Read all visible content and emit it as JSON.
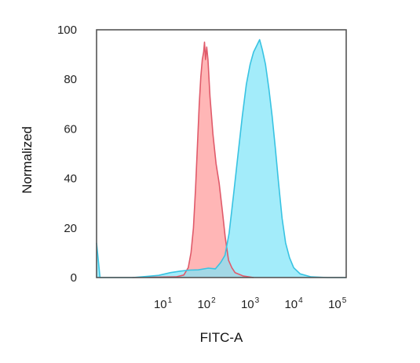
{
  "chart_data": {
    "type": "area",
    "xlabel": "FITC-A",
    "ylabel": "Normalized",
    "xscale": "log",
    "xlim": [
      0.3,
      160000
    ],
    "ylim": [
      0,
      100
    ],
    "yticks": [
      0,
      20,
      40,
      60,
      80,
      100
    ],
    "xticks": [
      {
        "value": 10,
        "base": "10",
        "exp": "1"
      },
      {
        "value": 100,
        "base": "10",
        "exp": "2"
      },
      {
        "value": 1000,
        "base": "10",
        "exp": "3"
      },
      {
        "value": 10000,
        "base": "10",
        "exp": "4"
      },
      {
        "value": 100000,
        "base": "10",
        "exp": "5"
      }
    ],
    "grid": false,
    "legend": "none",
    "series": [
      {
        "color_fill": "#ff9a9a",
        "color_line": "#e05a6a",
        "points": [
          [
            2,
            0
          ],
          [
            20,
            0.3
          ],
          [
            30,
            1
          ],
          [
            38,
            4
          ],
          [
            44,
            10
          ],
          [
            50,
            20
          ],
          [
            56,
            36
          ],
          [
            62,
            54
          ],
          [
            68,
            70
          ],
          [
            74,
            81
          ],
          [
            80,
            88
          ],
          [
            86,
            91
          ],
          [
            90,
            95
          ],
          [
            95,
            88
          ],
          [
            101,
            93
          ],
          [
            108,
            88
          ],
          [
            120,
            73
          ],
          [
            140,
            58
          ],
          [
            165,
            46
          ],
          [
            195,
            38
          ],
          [
            230,
            27
          ],
          [
            270,
            16
          ],
          [
            320,
            7
          ],
          [
            380,
            4
          ],
          [
            450,
            2
          ],
          [
            700,
            0.6
          ],
          [
            1200,
            0
          ]
        ]
      },
      {
        "color_fill": "#7fe5f8",
        "color_line": "#38c3e2",
        "points": [
          [
            0.3,
            14
          ],
          [
            0.36,
            0
          ],
          [
            2,
            0
          ],
          [
            4,
            0.4
          ],
          [
            8,
            0.9
          ],
          [
            15,
            2
          ],
          [
            25,
            2.6
          ],
          [
            40,
            3
          ],
          [
            65,
            3.1
          ],
          [
            110,
            3.8
          ],
          [
            160,
            3.5
          ],
          [
            210,
            6
          ],
          [
            265,
            9
          ],
          [
            330,
            18
          ],
          [
            420,
            34
          ],
          [
            530,
            50
          ],
          [
            660,
            65
          ],
          [
            820,
            78
          ],
          [
            1000,
            86
          ],
          [
            1200,
            91
          ],
          [
            1450,
            94
          ],
          [
            1650,
            96
          ],
          [
            1900,
            92
          ],
          [
            2250,
            86
          ],
          [
            2700,
            76
          ],
          [
            3200,
            65
          ],
          [
            3800,
            52
          ],
          [
            4500,
            38
          ],
          [
            5400,
            24
          ],
          [
            6500,
            14
          ],
          [
            8000,
            8
          ],
          [
            10000,
            4
          ],
          [
            14000,
            1.5
          ],
          [
            25000,
            0.3
          ],
          [
            60000,
            0
          ],
          [
            160000,
            0
          ]
        ]
      }
    ]
  }
}
